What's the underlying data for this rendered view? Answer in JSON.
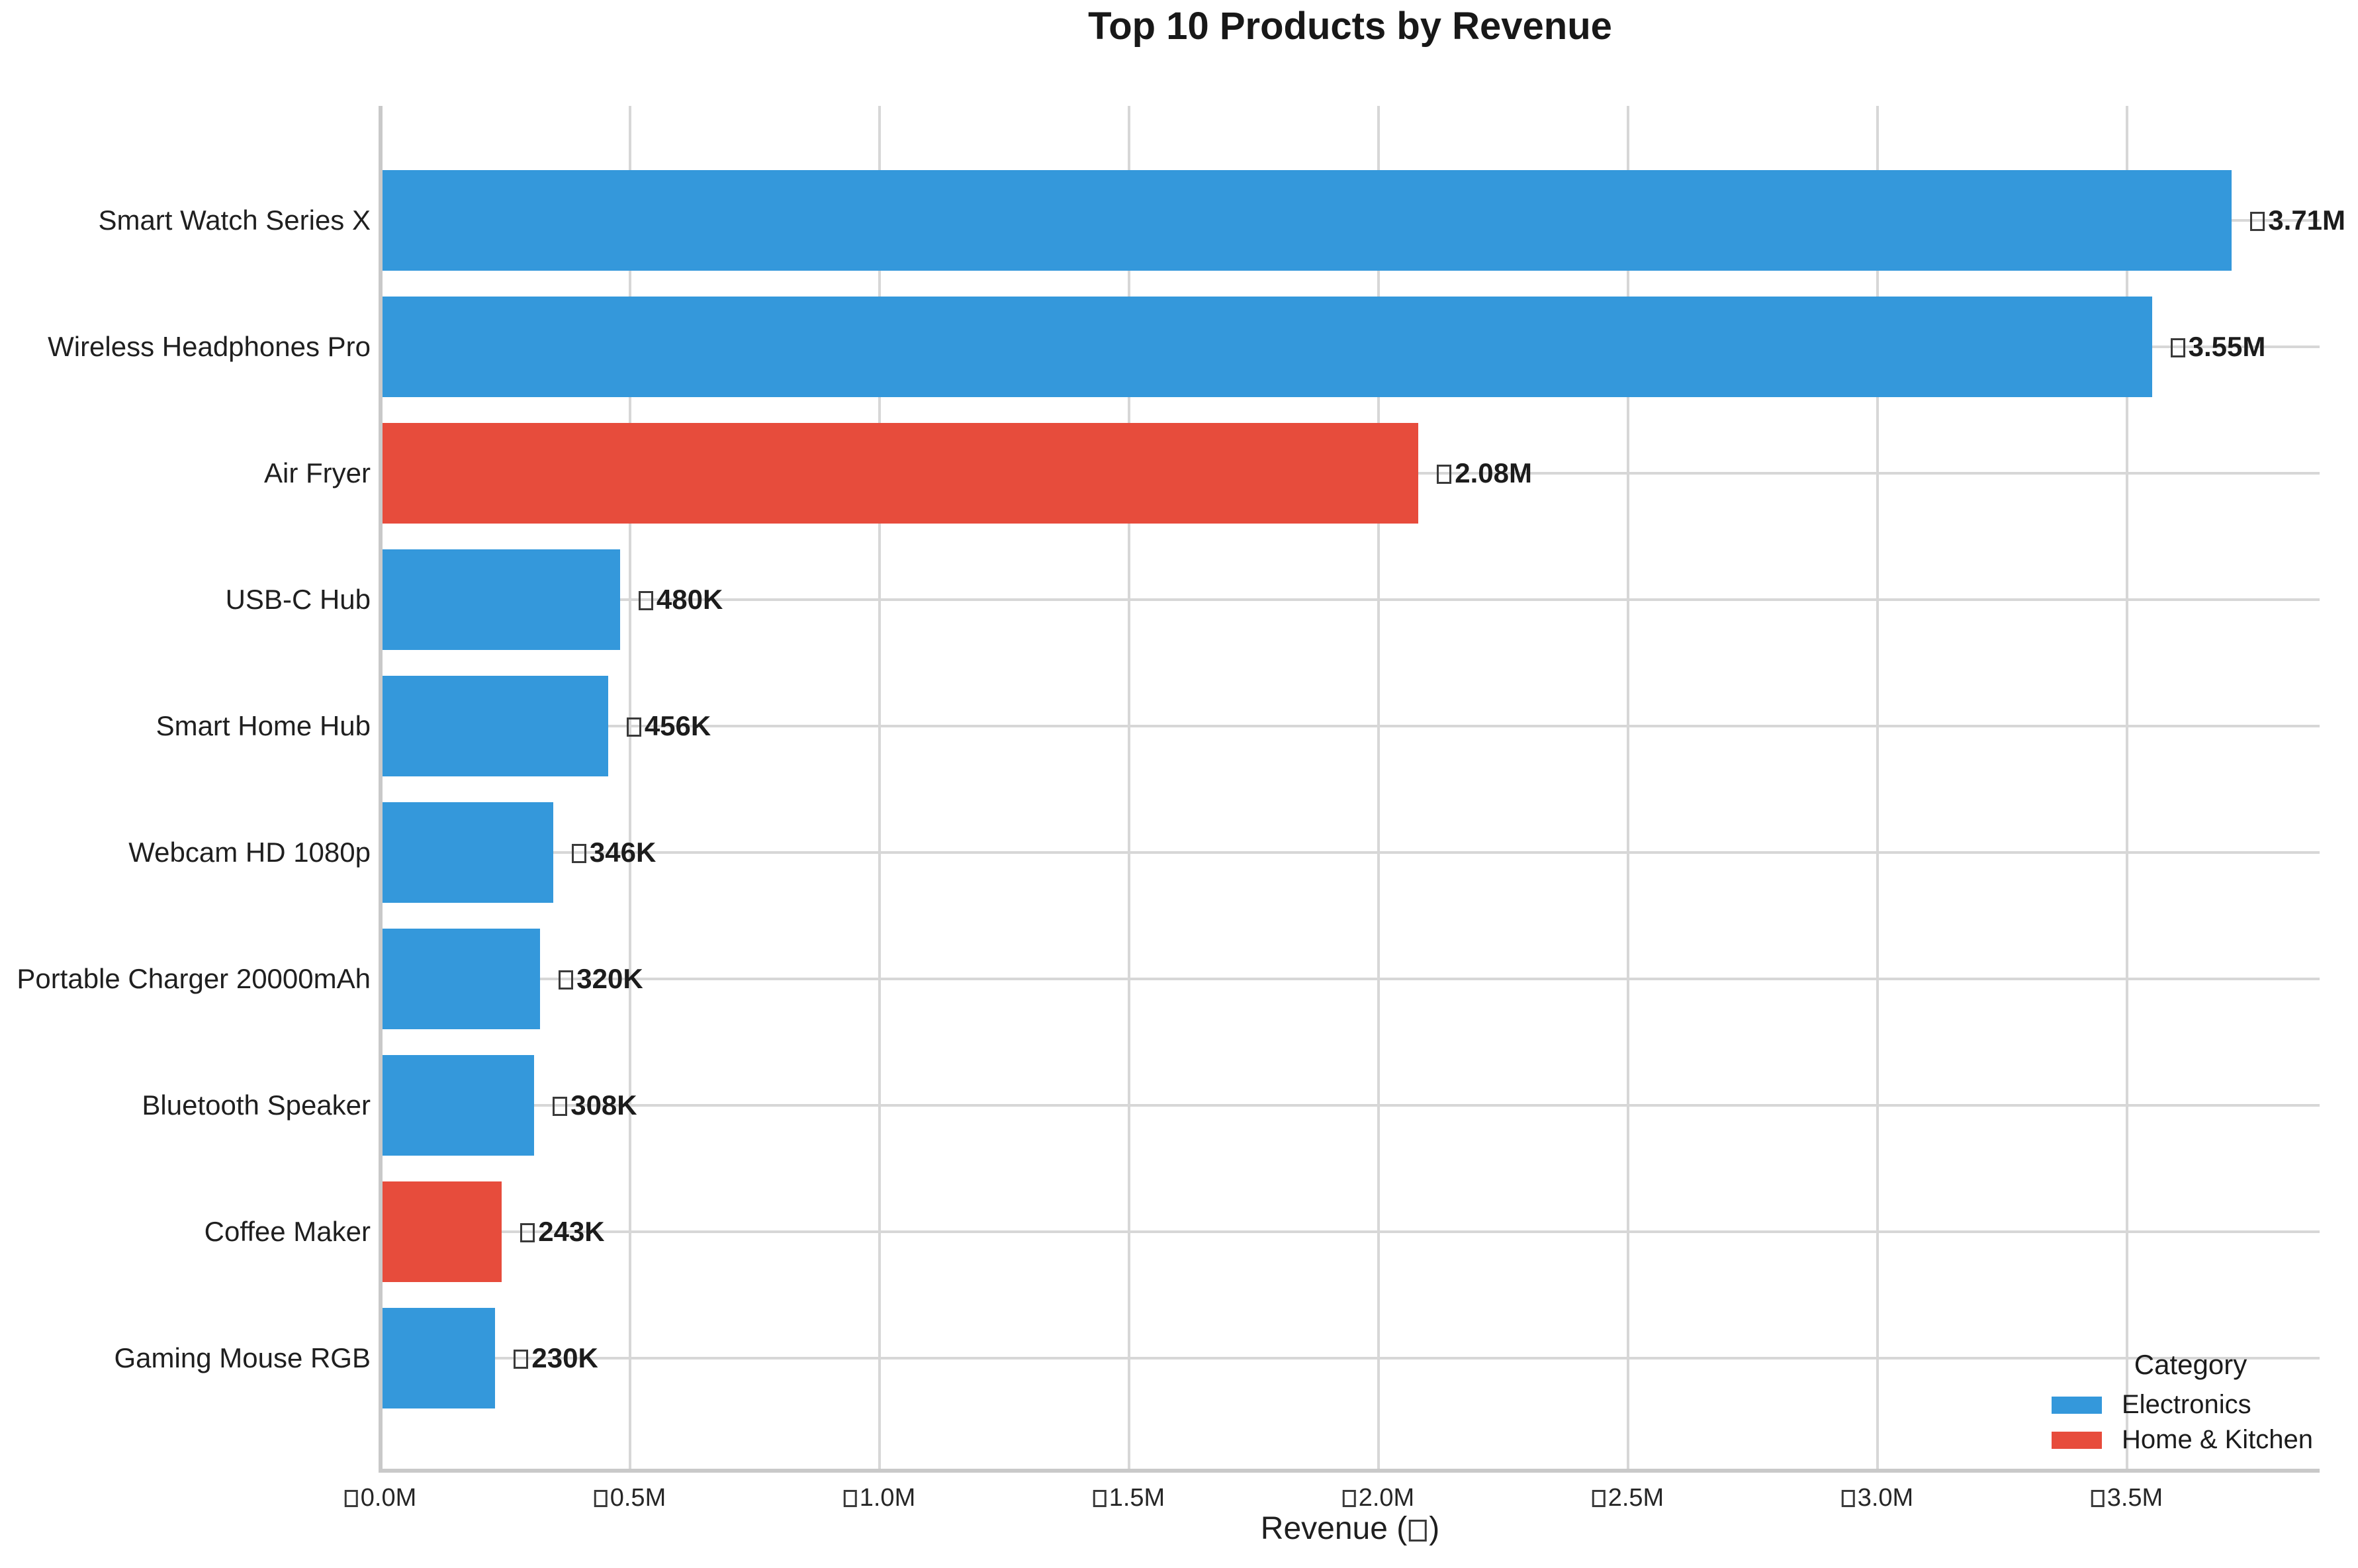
{
  "chart_data": {
    "type": "bar",
    "orientation": "horizontal",
    "title": "Top 10 Products by Revenue",
    "xlabel_prefix": "Revenue (",
    "xlabel_suffix": ")",
    "currency_symbol_rendered": "□",
    "products": [
      "Smart Watch Series X",
      "Wireless Headphones Pro",
      "Air Fryer",
      "USB-C Hub",
      "Smart Home Hub",
      "Webcam HD 1080p",
      "Portable Charger 20000mAh",
      "Bluetooth Speaker",
      "Coffee Maker",
      "Gaming Mouse RGB"
    ],
    "values": [
      3710000,
      3550000,
      2080000,
      480000,
      456000,
      346000,
      320000,
      308000,
      243000,
      230000
    ],
    "value_labels": [
      "3.71M",
      "3.55M",
      "2.08M",
      "480K",
      "456K",
      "346K",
      "320K",
      "308K",
      "243K",
      "230K"
    ],
    "categories": [
      "Electronics",
      "Electronics",
      "Home & Kitchen",
      "Electronics",
      "Electronics",
      "Electronics",
      "Electronics",
      "Electronics",
      "Home & Kitchen",
      "Electronics"
    ],
    "colors": {
      "Electronics": "#3498db",
      "Home & Kitchen": "#e74c3c"
    },
    "x_ticks": [
      "0.0M",
      "0.5M",
      "1.0M",
      "1.5M",
      "2.0M",
      "2.5M",
      "3.0M",
      "3.5M"
    ],
    "x_tick_values": [
      0,
      500000,
      1000000,
      1500000,
      2000000,
      2500000,
      3000000,
      3500000
    ],
    "xmax": 3886000,
    "grid": true,
    "legend": {
      "title": "Category",
      "position": "lower right",
      "entries": [
        {
          "label": "Electronics",
          "color": "#3498db"
        },
        {
          "label": "Home & Kitchen",
          "color": "#e74c3c"
        }
      ]
    }
  }
}
